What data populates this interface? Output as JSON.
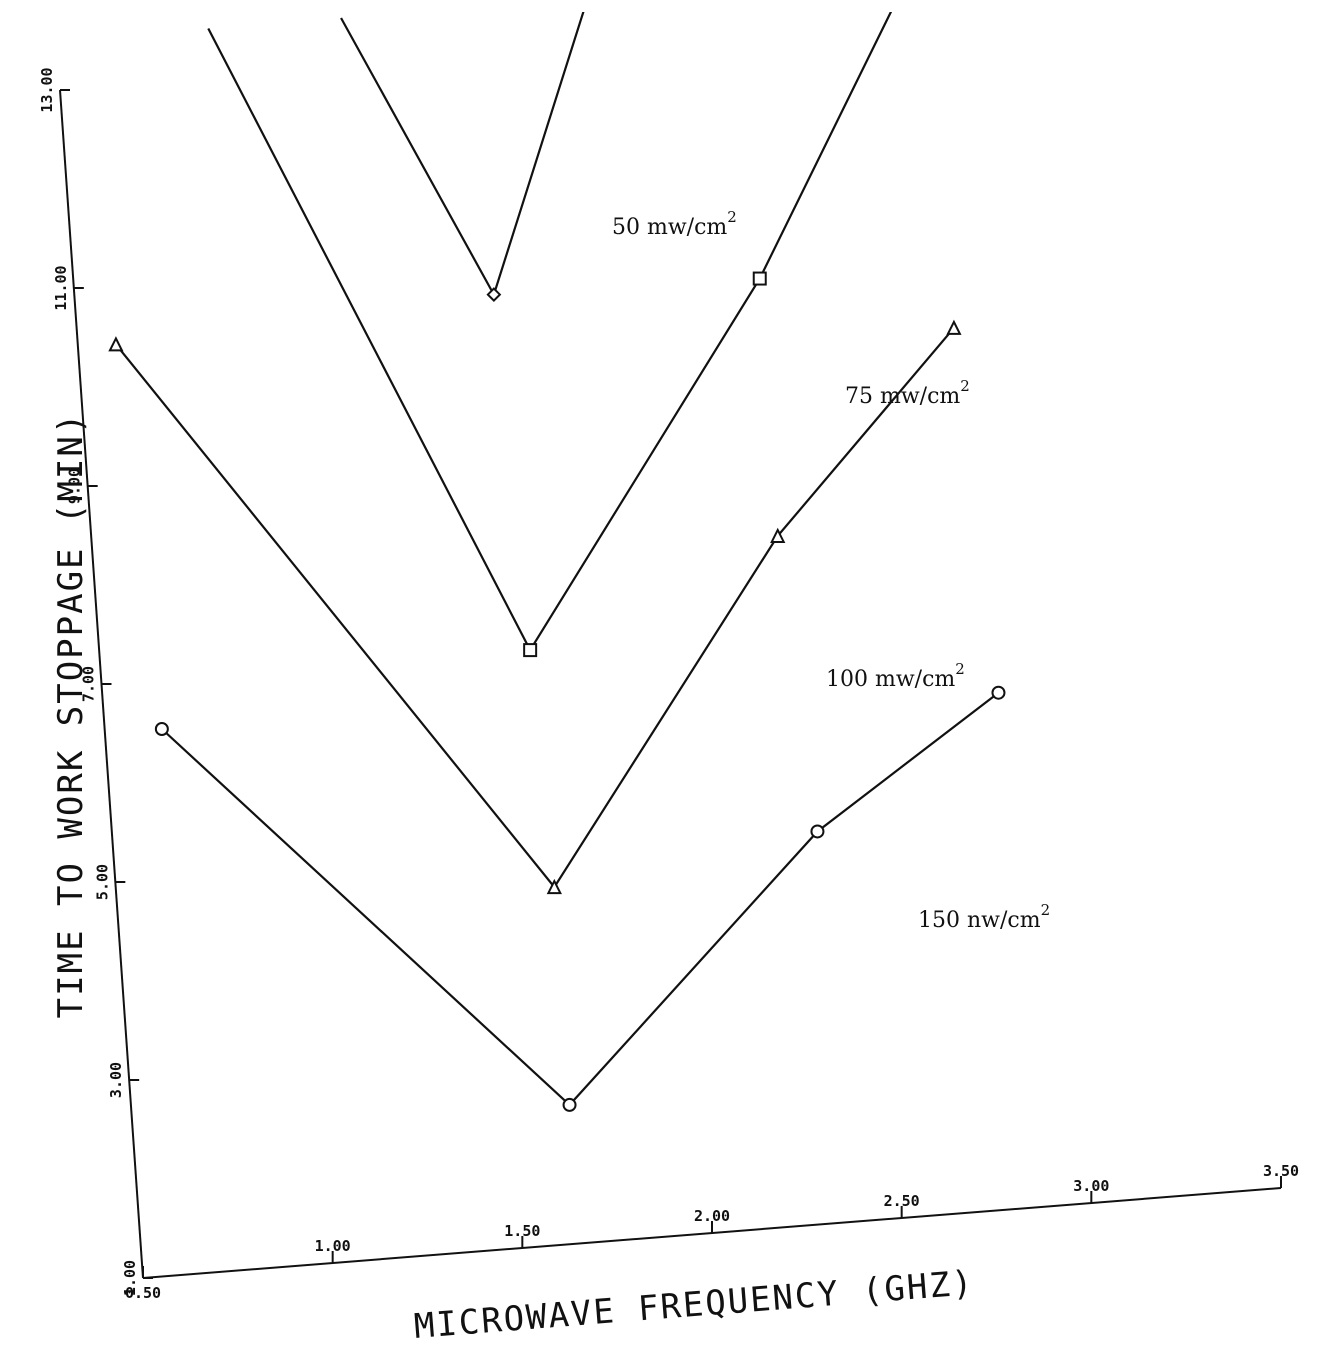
{
  "chart_data": {
    "type": "line",
    "xlabel": "MICROWAVE FREQUENCY (GHZ)",
    "ylabel": "TIME TO WORK STOPPAGE (MIN)",
    "xlim": [
      0.5,
      3.5
    ],
    "ylim": [
      1.0,
      13.0
    ],
    "x_ticks": [
      {
        "value": 0.5,
        "label": "0.50"
      },
      {
        "value": 1.0,
        "label": "1.00"
      },
      {
        "value": 1.5,
        "label": "1.50"
      },
      {
        "value": 2.0,
        "label": "2.00"
      },
      {
        "value": 2.5,
        "label": "2.50"
      },
      {
        "value": 3.0,
        "label": "3.00"
      },
      {
        "value": 3.5,
        "label": "3.50"
      }
    ],
    "y_ticks": [
      {
        "value": 1.0,
        "label": "1.00"
      },
      {
        "value": 3.0,
        "label": "3.00"
      },
      {
        "value": 5.0,
        "label": "5.00"
      },
      {
        "value": 7.0,
        "label": "7.00"
      },
      {
        "value": 9.0,
        "label": "9.00"
      },
      {
        "value": 11.0,
        "label": "11.00"
      },
      {
        "value": 13.0,
        "label": "13.00"
      }
    ],
    "grid": false,
    "series": [
      {
        "label_main": "50 mw/cm",
        "label_sup": "2",
        "marker": "diamond",
        "points": [
          {
            "x": 1.25,
            "y": 13.5
          },
          {
            "x": 1.6,
            "y": 10.6
          },
          {
            "x": 1.9,
            "y": 13.5
          }
        ]
      },
      {
        "label_main": "75 mw/cm",
        "label_sup": "2",
        "marker": "square",
        "points": [
          {
            "x": 0.9,
            "y": 13.5
          },
          {
            "x": 1.63,
            "y": 7.0
          },
          {
            "x": 2.3,
            "y": 10.55
          },
          {
            "x": 2.75,
            "y": 13.5
          }
        ]
      },
      {
        "label_main": "100 mw/cm",
        "label_sup": "2",
        "marker": "triangle",
        "points": [
          {
            "x": 0.6,
            "y": 10.4
          },
          {
            "x": 1.65,
            "y": 4.6
          },
          {
            "x": 2.3,
            "y": 7.95
          },
          {
            "x": 2.8,
            "y": 9.9
          }
        ]
      },
      {
        "label_main": "150 nw/cm",
        "label_sup": "2",
        "marker": "circle",
        "points": [
          {
            "x": 0.65,
            "y": 6.5
          },
          {
            "x": 1.65,
            "y": 2.4
          },
          {
            "x": 2.35,
            "y": 4.95
          },
          {
            "x": 2.85,
            "y": 6.2
          }
        ]
      }
    ]
  }
}
